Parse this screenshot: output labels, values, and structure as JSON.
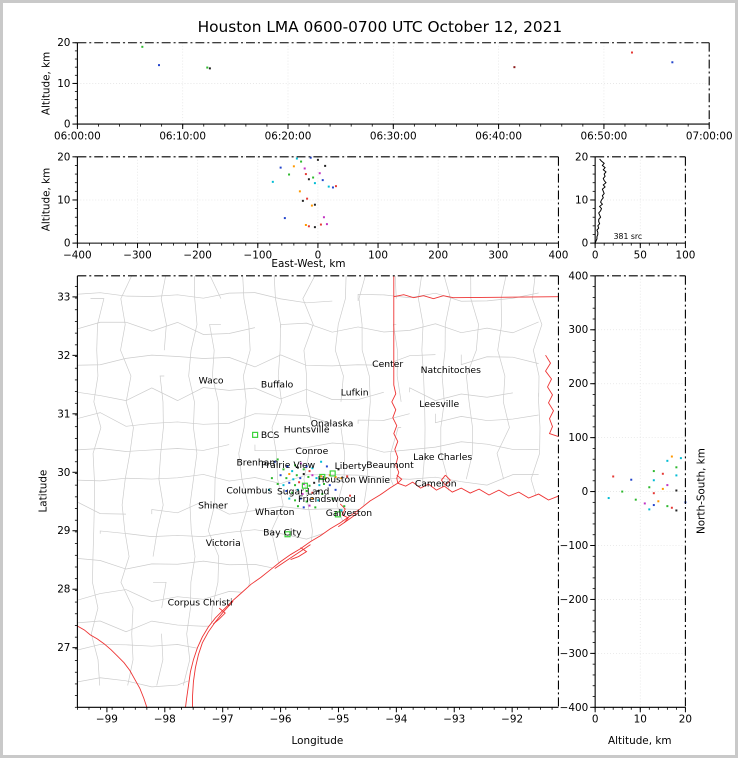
{
  "figure": {
    "title": "Houston LMA 0600-0700 UTC October 12, 2021"
  },
  "labels": {
    "altitude_y": "Altitude, km",
    "east_west_x": "East-West, km",
    "latitude_y": "Latitude",
    "longitude_x": "Longitude",
    "north_south_y": "North-South, km",
    "altitude_x": "Altitude, km",
    "source_count": "381 src"
  },
  "colors": {
    "county": "#cccccc",
    "state": "#ee3333",
    "station": "#3ad23a",
    "bcs_label": "#b22222",
    "houston_label": "#ff8c00",
    "grid": "#e4e4e4",
    "frame": "#000000"
  },
  "palette": {
    "blue": "#2244cc",
    "cyan": "#00bcd4",
    "green": "#2db82d",
    "orange": "#ff9800",
    "red": "#e53935",
    "magenta": "#c232c2",
    "black": "#222222",
    "darkred": "#8b1a1a"
  },
  "chart_data": [
    {
      "id": "time_altitude",
      "type": "scatter",
      "xlabel": "",
      "ylabel": "Altitude, km",
      "xlim": [
        0,
        3600
      ],
      "ylim": [
        0,
        20
      ],
      "grid": true,
      "x_ticks": [
        {
          "v": 0,
          "l": "06:00:00"
        },
        {
          "v": 600,
          "l": "06:10:00"
        },
        {
          "v": 1200,
          "l": "06:20:00"
        },
        {
          "v": 1800,
          "l": "06:30:00"
        },
        {
          "v": 2400,
          "l": "06:40:00"
        },
        {
          "v": 3000,
          "l": "06:50:00"
        },
        {
          "v": 3600,
          "l": "07:00:00"
        }
      ],
      "y_ticks": [
        {
          "v": 0,
          "l": "0"
        },
        {
          "v": 10,
          "l": "10"
        },
        {
          "v": 20,
          "l": "20"
        }
      ],
      "points": [
        {
          "time": "06:06:10",
          "alt_km": 19.0,
          "color": "green"
        },
        {
          "time": "06:07:45",
          "alt_km": 14.5,
          "color": "blue"
        },
        {
          "time": "06:12:20",
          "alt_km": 13.9,
          "color": "green"
        },
        {
          "time": "06:12:35",
          "alt_km": 13.7,
          "color": "black"
        },
        {
          "time": "06:41:30",
          "alt_km": 14.0,
          "color": "darkred"
        },
        {
          "time": "06:52:40",
          "alt_km": 17.6,
          "color": "red"
        },
        {
          "time": "06:56:30",
          "alt_km": 15.2,
          "color": "blue"
        }
      ]
    },
    {
      "id": "ew_altitude",
      "type": "scatter",
      "xlabel": "East-West, km",
      "ylabel": "Altitude, km",
      "xlim": [
        -400,
        400
      ],
      "ylim": [
        0,
        20
      ],
      "grid": true,
      "x_ticks": [
        {
          "v": -400,
          "l": "−400"
        },
        {
          "v": -300,
          "l": "−300"
        },
        {
          "v": -200,
          "l": "−200"
        },
        {
          "v": -100,
          "l": "−100"
        },
        {
          "v": 0,
          "l": "0"
        },
        {
          "v": 100,
          "l": "100"
        },
        {
          "v": 200,
          "l": "200"
        },
        {
          "v": 300,
          "l": "300"
        },
        {
          "v": 400,
          "l": "400"
        }
      ],
      "y_ticks": [
        {
          "v": 0,
          "l": "0"
        },
        {
          "v": 10,
          "l": "10"
        },
        {
          "v": 20,
          "l": "20"
        }
      ],
      "points": [
        [
          -75,
          14.2,
          "cyan"
        ],
        [
          -62,
          17.5,
          "blue"
        ],
        [
          -48,
          15.9,
          "green"
        ],
        [
          -40,
          17.8,
          "orange"
        ],
        [
          -35,
          19.6,
          "cyan"
        ],
        [
          -28,
          18.9,
          "green"
        ],
        [
          -22,
          17.3,
          "magenta"
        ],
        [
          -20,
          16.0,
          "red"
        ],
        [
          -15,
          14.8,
          "black"
        ],
        [
          -12,
          19.8,
          "blue"
        ],
        [
          -8,
          15.2,
          "green"
        ],
        [
          -5,
          13.9,
          "cyan"
        ],
        [
          0,
          19.3,
          "black"
        ],
        [
          3,
          16.2,
          "magenta"
        ],
        [
          8,
          14.6,
          "blue"
        ],
        [
          12,
          17.9,
          "black"
        ],
        [
          18,
          13.1,
          "cyan"
        ],
        [
          25,
          12.9,
          "blue"
        ],
        [
          30,
          13.2,
          "red"
        ],
        [
          -30,
          12.0,
          "orange"
        ],
        [
          -18,
          10.3,
          "red"
        ],
        [
          -25,
          9.8,
          "black"
        ],
        [
          -10,
          8.7,
          "orange"
        ],
        [
          -5,
          8.9,
          "black"
        ],
        [
          10,
          6.0,
          "magenta"
        ],
        [
          -55,
          5.8,
          "blue"
        ],
        [
          -20,
          4.2,
          "orange"
        ],
        [
          -15,
          3.9,
          "red"
        ],
        [
          -5,
          3.7,
          "black"
        ],
        [
          5,
          4.3,
          "red"
        ],
        [
          15,
          4.4,
          "magenta"
        ]
      ]
    },
    {
      "id": "altitude_histogram",
      "type": "line",
      "xlabel": "",
      "ylabel": "",
      "xlim": [
        0,
        100
      ],
      "ylim": [
        0,
        20
      ],
      "grid": true,
      "annotation": "381 src",
      "x_ticks": [
        {
          "v": 0,
          "l": "0"
        },
        {
          "v": 50,
          "l": "50"
        },
        {
          "v": 100,
          "l": "100"
        }
      ],
      "y_ticks": [
        {
          "v": 0,
          "l": "0"
        },
        {
          "v": 10,
          "l": "10"
        },
        {
          "v": 20,
          "l": "20"
        }
      ],
      "alt_bin_km": 0.5,
      "counts_by_alt_bin": [
        0,
        1,
        2,
        2,
        3,
        3,
        2,
        4,
        3,
        5,
        4,
        4,
        6,
        5,
        4,
        6,
        7,
        5,
        8,
        6,
        7,
        9,
        8,
        10,
        9,
        8,
        11,
        9,
        12,
        10,
        9,
        11,
        10,
        12,
        9,
        11,
        8,
        10,
        7,
        5
      ]
    },
    {
      "id": "plan_view",
      "type": "map-scatter",
      "xlabel": "Longitude",
      "ylabel": "Latitude",
      "xlim": [
        -99.51,
        -91.2
      ],
      "ylim": [
        25.98,
        33.36
      ],
      "grid": false,
      "x_ticks": [
        {
          "v": -99,
          "l": "−99"
        },
        {
          "v": -98,
          "l": "−98"
        },
        {
          "v": -97,
          "l": "−97"
        },
        {
          "v": -96,
          "l": "−96"
        },
        {
          "v": -95,
          "l": "−95"
        },
        {
          "v": -94,
          "l": "−94"
        },
        {
          "v": -93,
          "l": "−93"
        },
        {
          "v": -92,
          "l": "−92"
        }
      ],
      "y_ticks": [
        {
          "v": 27,
          "l": "27"
        },
        {
          "v": 28,
          "l": "28"
        },
        {
          "v": 29,
          "l": "29"
        },
        {
          "v": 30,
          "l": "30"
        },
        {
          "v": 31,
          "l": "31"
        },
        {
          "v": 32,
          "l": "32"
        },
        {
          "v": 33,
          "l": "33"
        }
      ],
      "cities": [
        {
          "name": "Waco",
          "lon": -97.2,
          "lat": 31.57
        },
        {
          "name": "Buffalo",
          "lon": -96.06,
          "lat": 31.5
        },
        {
          "name": "Lufkin",
          "lon": -94.72,
          "lat": 31.36
        },
        {
          "name": "Center",
          "lon": -94.15,
          "lat": 31.85
        },
        {
          "name": "Natchitoches",
          "lon": -93.06,
          "lat": 31.75
        },
        {
          "name": "Leesville",
          "lon": -93.26,
          "lat": 31.17
        },
        {
          "name": "Onalaska",
          "lon": -95.11,
          "lat": 30.83
        },
        {
          "name": "Huntsville",
          "lon": -95.55,
          "lat": 30.73
        },
        {
          "name": "Conroe",
          "lon": -95.46,
          "lat": 30.36
        },
        {
          "name": "Brenham",
          "lon": -96.4,
          "lat": 30.17
        },
        {
          "name": "Prairie View",
          "lon": -95.87,
          "lat": 30.12
        },
        {
          "name": "Liberty",
          "lon": -94.79,
          "lat": 30.11
        },
        {
          "name": "Beaumont",
          "lon": -94.11,
          "lat": 30.12
        },
        {
          "name": "Lake Charles",
          "lon": -93.2,
          "lat": 30.26
        },
        {
          "name": "Winnie",
          "lon": -94.38,
          "lat": 29.87
        },
        {
          "name": "Cameron",
          "lon": -93.32,
          "lat": 29.81
        },
        {
          "name": "Columbus",
          "lon": -96.54,
          "lat": 29.69
        },
        {
          "name": "Sugar Land",
          "lon": -95.61,
          "lat": 29.67
        },
        {
          "name": "Friendswood",
          "lon": -95.2,
          "lat": 29.54
        },
        {
          "name": "Shiner",
          "lon": -97.17,
          "lat": 29.43
        },
        {
          "name": "Wharton",
          "lon": -96.1,
          "lat": 29.32
        },
        {
          "name": "Galveston",
          "lon": -94.82,
          "lat": 29.3
        },
        {
          "name": "Bay City",
          "lon": -95.97,
          "lat": 28.97
        },
        {
          "name": "Victoria",
          "lon": -96.99,
          "lat": 28.79
        },
        {
          "name": "Corpus Christi",
          "lon": -97.39,
          "lat": 27.77
        }
      ],
      "special_labels": [
        {
          "name": "BCS",
          "lon": -96.34,
          "lat": 30.64,
          "color_key": "bcs_label"
        },
        {
          "name": "Houston",
          "lon": -95.36,
          "lat": 29.88,
          "color_key": "houston_label"
        }
      ],
      "stations": [
        {
          "lon": -96.44,
          "lat": 30.64
        },
        {
          "lon": -95.01,
          "lat": 29.28
        },
        {
          "lon": -95.88,
          "lat": 28.94
        },
        {
          "lon": -95.28,
          "lat": 29.92
        },
        {
          "lon": -95.58,
          "lat": 29.77
        },
        {
          "lon": -95.1,
          "lat": 29.98
        }
      ],
      "points": [
        [
          -95.95,
          30.05,
          "green"
        ],
        [
          -95.88,
          30.1,
          "blue"
        ],
        [
          -95.8,
          30.02,
          "cyan"
        ],
        [
          -95.75,
          30.12,
          "green"
        ],
        [
          -95.7,
          30.08,
          "black"
        ],
        [
          -95.65,
          30.15,
          "magenta"
        ],
        [
          -95.6,
          30.05,
          "green"
        ],
        [
          -95.55,
          30.1,
          "blue"
        ],
        [
          -95.5,
          30.02,
          "red"
        ],
        [
          -95.45,
          30.07,
          "cyan"
        ],
        [
          -96.0,
          29.95,
          "blue"
        ],
        [
          -95.9,
          29.9,
          "green"
        ],
        [
          -95.85,
          29.97,
          "orange"
        ],
        [
          -95.78,
          29.88,
          "cyan"
        ],
        [
          -95.72,
          29.95,
          "green"
        ],
        [
          -95.66,
          29.9,
          "blue"
        ],
        [
          -95.6,
          29.97,
          "black"
        ],
        [
          -95.52,
          29.92,
          "green"
        ],
        [
          -95.45,
          29.95,
          "magenta"
        ],
        [
          -95.38,
          29.9,
          "cyan"
        ],
        [
          -95.3,
          29.93,
          "orange"
        ],
        [
          -95.22,
          29.9,
          "orange"
        ],
        [
          -95.15,
          29.95,
          "orange"
        ],
        [
          -95.05,
          29.92,
          "orange"
        ],
        [
          -94.95,
          29.9,
          "orange"
        ],
        [
          -94.85,
          29.93,
          "red"
        ],
        [
          -96.05,
          29.8,
          "green"
        ],
        [
          -95.95,
          29.78,
          "cyan"
        ],
        [
          -95.85,
          29.82,
          "blue"
        ],
        [
          -95.75,
          29.78,
          "green"
        ],
        [
          -95.68,
          29.83,
          "red"
        ],
        [
          -95.6,
          29.8,
          "magenta"
        ],
        [
          -95.5,
          29.77,
          "green"
        ],
        [
          -95.42,
          29.82,
          "black"
        ],
        [
          -95.33,
          29.78,
          "cyan"
        ],
        [
          -95.25,
          29.8,
          "green"
        ],
        [
          -95.15,
          29.78,
          "blue"
        ],
        [
          -95.9,
          29.68,
          "blue"
        ],
        [
          -95.8,
          29.65,
          "green"
        ],
        [
          -95.7,
          29.7,
          "cyan"
        ],
        [
          -95.62,
          29.63,
          "magenta"
        ],
        [
          -95.55,
          29.68,
          "green"
        ],
        [
          -95.45,
          29.65,
          "red"
        ],
        [
          -95.35,
          29.68,
          "black"
        ],
        [
          -95.28,
          29.63,
          "green"
        ],
        [
          -95.85,
          29.55,
          "cyan"
        ],
        [
          -95.75,
          29.52,
          "green"
        ],
        [
          -95.65,
          29.55,
          "blue"
        ],
        [
          -95.55,
          29.5,
          "green"
        ],
        [
          -95.45,
          29.55,
          "orange"
        ],
        [
          -95.35,
          29.52,
          "cyan"
        ],
        [
          -95.7,
          29.42,
          "green"
        ],
        [
          -95.6,
          29.4,
          "blue"
        ],
        [
          -95.5,
          29.43,
          "magenta"
        ],
        [
          -95.4,
          29.4,
          "green"
        ],
        [
          -94.95,
          29.35,
          "cyan"
        ],
        [
          -94.9,
          29.42,
          "green"
        ],
        [
          -96.1,
          30.18,
          "blue"
        ],
        [
          -96.05,
          30.22,
          "green"
        ],
        [
          -95.3,
          30.18,
          "cyan"
        ],
        [
          -95.2,
          30.1,
          "blue"
        ],
        [
          -94.8,
          29.6,
          "red"
        ],
        [
          -95.1,
          29.55,
          "green"
        ],
        [
          -95.05,
          29.7,
          "blue"
        ],
        [
          -96.15,
          29.9,
          "green"
        ],
        [
          -96.2,
          29.7,
          "cyan"
        ],
        [
          -95.0,
          30.05,
          "black"
        ]
      ]
    },
    {
      "id": "ns_altitude",
      "type": "scatter",
      "xlabel": "Altitude, km",
      "ylabel": "North-South, km",
      "xlim": [
        0,
        20
      ],
      "ylim": [
        -400,
        400
      ],
      "grid": true,
      "x_ticks": [
        {
          "v": 0,
          "l": "0"
        },
        {
          "v": 10,
          "l": "10"
        },
        {
          "v": 20,
          "l": "20"
        }
      ],
      "y_ticks": [
        {
          "v": -400,
          "l": "−400"
        },
        {
          "v": -300,
          "l": "−300"
        },
        {
          "v": -200,
          "l": "−200"
        },
        {
          "v": -100,
          "l": "−100"
        },
        {
          "v": 0,
          "l": "0"
        },
        {
          "v": 100,
          "l": "100"
        },
        {
          "v": 200,
          "l": "200"
        },
        {
          "v": 300,
          "l": "300"
        },
        {
          "v": 400,
          "l": "400"
        }
      ],
      "points": [
        [
          17,
          65,
          "orange"
        ],
        [
          16,
          57,
          "cyan"
        ],
        [
          19,
          62,
          "cyan"
        ],
        [
          18,
          45,
          "green"
        ],
        [
          13,
          38,
          "green"
        ],
        [
          15,
          33,
          "red"
        ],
        [
          18,
          30,
          "cyan"
        ],
        [
          4,
          28,
          "red"
        ],
        [
          8,
          22,
          "blue"
        ],
        [
          13,
          21,
          "cyan"
        ],
        [
          16,
          12,
          "magenta"
        ],
        [
          12,
          8,
          "green"
        ],
        [
          15,
          5,
          "orange"
        ],
        [
          18,
          2,
          "black"
        ],
        [
          6,
          0,
          "green"
        ],
        [
          13,
          -3,
          "red"
        ],
        [
          3,
          -12,
          "cyan"
        ],
        [
          9,
          -15,
          "green"
        ],
        [
          14,
          -18,
          "orange"
        ],
        [
          11,
          -22,
          "magenta"
        ],
        [
          13,
          -25,
          "blue"
        ],
        [
          16,
          -27,
          "green"
        ],
        [
          17,
          -30,
          "red"
        ],
        [
          12,
          -33,
          "cyan"
        ],
        [
          18,
          -35,
          "black"
        ],
        [
          20,
          -20,
          "blue"
        ]
      ]
    }
  ]
}
